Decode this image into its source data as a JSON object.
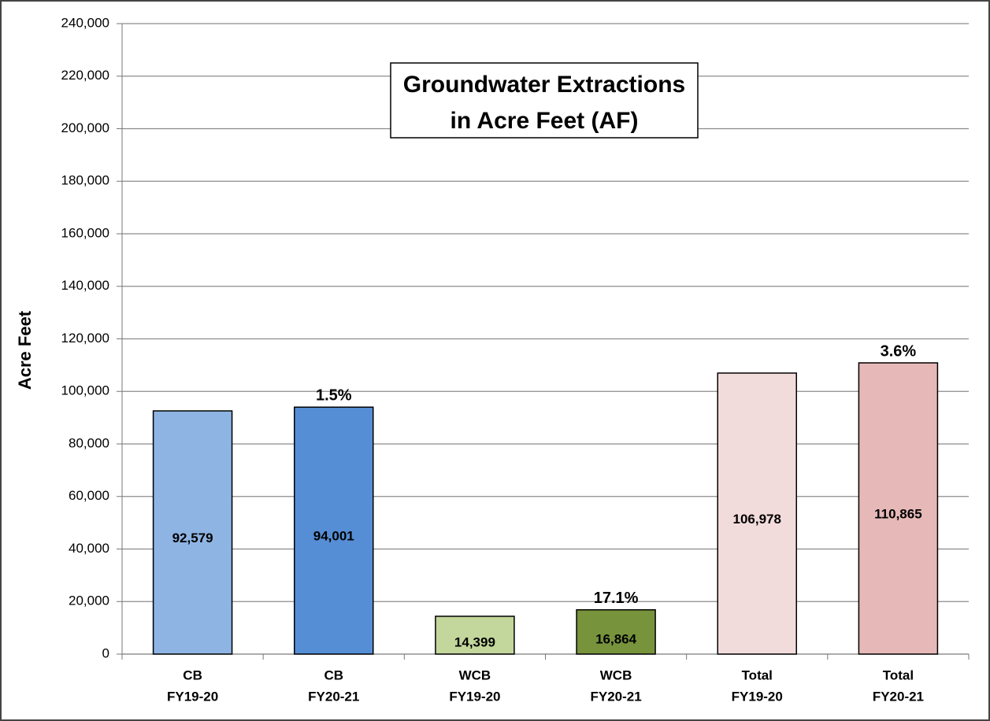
{
  "chart_data": {
    "type": "bar",
    "title": [
      "Groundwater Extractions",
      "in Acre Feet (AF)"
    ],
    "y_label": "Acre Feet",
    "categories": [
      [
        "CB",
        "FY19-20"
      ],
      [
        "CB",
        "FY20-21"
      ],
      [
        "WCB",
        "FY19-20"
      ],
      [
        "WCB",
        "FY20-21"
      ],
      [
        "Total",
        "FY19-20"
      ],
      [
        "Total",
        "FY20-21"
      ]
    ],
    "values": [
      92579,
      94001,
      14399,
      16864,
      106978,
      110865
    ],
    "value_labels": [
      "92,579",
      "94,001",
      "14,399",
      "16,864",
      "106,978",
      "110,865"
    ],
    "change_labels": [
      null,
      "1.5%",
      null,
      "17.1%",
      null,
      "3.6%"
    ],
    "colors": [
      "#8eb4e3",
      "#558ed5",
      "#c3d69b",
      "#77933c",
      "#f2dcdb",
      "#e6b9b8"
    ],
    "ylim": [
      0,
      240000
    ],
    "yticks": [
      0,
      {
        "value": 20000,
        "label": "20,000"
      },
      {
        "value": 40000,
        "label": "40,000"
      },
      {
        "value": 60000,
        "label": "60,000"
      },
      {
        "value": 80000,
        "label": "80,000"
      },
      {
        "value": 100000,
        "label": "100,000"
      },
      {
        "value": 120000,
        "label": "120,000"
      },
      {
        "value": 140000,
        "label": "140,000"
      },
      {
        "value": 160000,
        "label": "160,000"
      },
      {
        "value": 180000,
        "label": "180,000"
      },
      {
        "value": 200000,
        "label": "200,000"
      },
      {
        "value": 220000,
        "label": "220,000"
      },
      {
        "value": 240000,
        "label": "240,000"
      }
    ],
    "grid": true
  }
}
